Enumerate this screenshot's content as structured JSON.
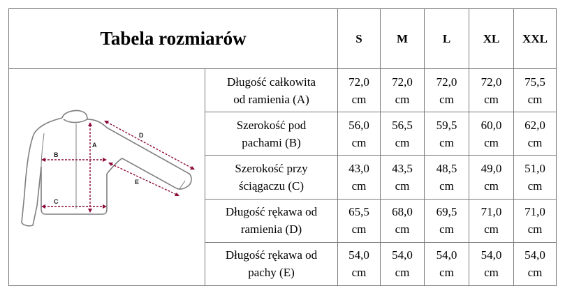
{
  "title": "Tabela rozmiarów",
  "sizes": [
    "S",
    "M",
    "L",
    "XL",
    "XXL"
  ],
  "rows": [
    {
      "label_line1": "Długość całkowita",
      "label_line2": "od ramienia (A)",
      "values": [
        "72,0",
        "72,0",
        "72,0",
        "72,0",
        "75,5"
      ],
      "unit": "cm"
    },
    {
      "label_line1": "Szerokość pod",
      "label_line2": "pachami (B)",
      "values": [
        "56,0",
        "56,5",
        "59,5",
        "60,0",
        "62,0"
      ],
      "unit": "cm"
    },
    {
      "label_line1": "Szerokość przy",
      "label_line2": "ściągaczu (C)",
      "values": [
        "43,0",
        "43,5",
        "48,5",
        "49,0",
        "51,0"
      ],
      "unit": "cm"
    },
    {
      "label_line1": "Długość rękawa od",
      "label_line2": "ramienia (D)",
      "values": [
        "65,5",
        "68,0",
        "69,5",
        "71,0",
        "71,0"
      ],
      "unit": "cm"
    },
    {
      "label_line1": "Długość rękawa od",
      "label_line2": "pachy (E)",
      "values": [
        "54,0",
        "54,0",
        "54,0",
        "54,0",
        "54,0"
      ],
      "unit": "cm"
    }
  ],
  "diagram": {
    "letters": {
      "a": "A",
      "b": "B",
      "c": "C",
      "d": "D",
      "e": "E"
    },
    "colors": {
      "outline": "#7f7f7f",
      "measure": "#8b0a3c"
    }
  }
}
